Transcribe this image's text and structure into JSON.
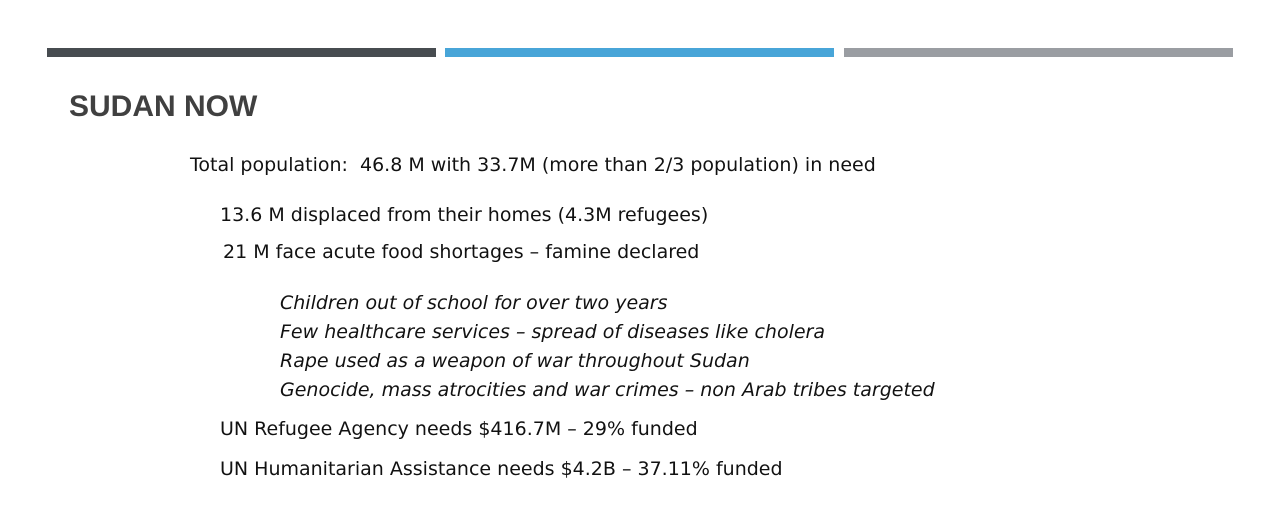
{
  "title": "SUDAN NOW",
  "lines": [
    "Total population:  46.8 M with 33.7M (more than 2/3 population) in need",
    "13.6 M displaced from their homes (4.3M refugees)",
    "21 M face acute food shortages – famine declared"
  ],
  "italic_lines": [
    "Children out of school for over two years",
    "Few healthcare services – spread of diseases like cholera",
    "Rape used as a weapon of war throughout Sudan",
    "Genocide, mass atrocities and war crimes – non Arab tribes targeted"
  ],
  "funding": [
    "UN Refugee Agency needs $416.7M – 29% funded",
    "UN Humanitarian Assistance needs $4.2B – 37.11% funded"
  ]
}
